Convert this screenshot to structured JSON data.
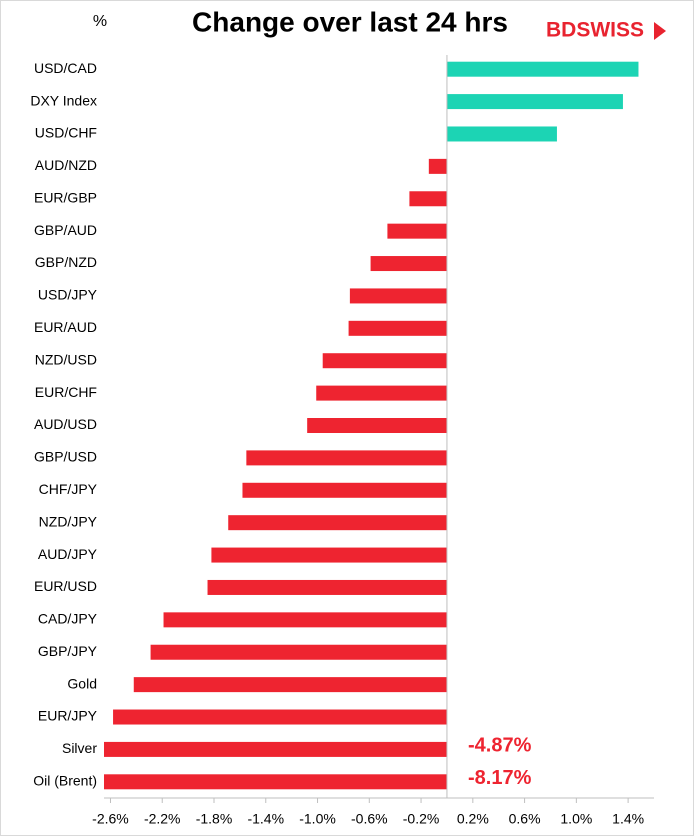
{
  "chart_data": {
    "type": "hbar",
    "title": "Change over last 24 hrs",
    "y_label": "%",
    "logo": "BDSWISS",
    "categories": [
      "USD/CAD",
      "DXY Index",
      "USD/CHF",
      "AUD/NZD",
      "EUR/GBP",
      "GBP/AUD",
      "GBP/NZD",
      "USD/JPY",
      "EUR/AUD",
      "NZD/USD",
      "EUR/CHF",
      "AUD/USD",
      "GBP/USD",
      "CHF/JPY",
      "NZD/JPY",
      "AUD/JPY",
      "EUR/USD",
      "CAD/JPY",
      "GBP/JPY",
      "Gold",
      "EUR/JPY",
      "Silver",
      "Oil (Brent)"
    ],
    "values": [
      1.48,
      1.36,
      0.85,
      -0.14,
      -0.29,
      -0.46,
      -0.59,
      -0.75,
      -0.76,
      -0.96,
      -1.01,
      -1.08,
      -1.55,
      -1.58,
      -1.69,
      -1.82,
      -1.85,
      -2.19,
      -2.29,
      -2.42,
      -2.58,
      -4.87,
      -8.17
    ],
    "value_labels": [
      null,
      null,
      null,
      null,
      null,
      null,
      null,
      null,
      null,
      null,
      null,
      null,
      null,
      null,
      null,
      null,
      null,
      null,
      null,
      null,
      null,
      "-4.87%",
      "-8.17%"
    ],
    "positive_color": "#1cd4b4",
    "negative_color": "#ee2430",
    "xlim": [
      -2.65,
      1.6
    ],
    "xticks": [
      {
        "value": -2.6,
        "label": "-2.6%"
      },
      {
        "value": -2.2,
        "label": "-2.2%"
      },
      {
        "value": -1.8,
        "label": "-1.8%"
      },
      {
        "value": -1.4,
        "label": "-1.4%"
      },
      {
        "value": -1.0,
        "label": "-1.0%"
      },
      {
        "value": -0.6,
        "label": "-0.6%"
      },
      {
        "value": -0.2,
        "label": "-0.2%"
      },
      {
        "value": 0.2,
        "label": "0.2%"
      },
      {
        "value": 0.6,
        "label": "0.6%"
      },
      {
        "value": 1.0,
        "label": "1.0%"
      },
      {
        "value": 1.4,
        "label": "1.4%"
      }
    ]
  }
}
